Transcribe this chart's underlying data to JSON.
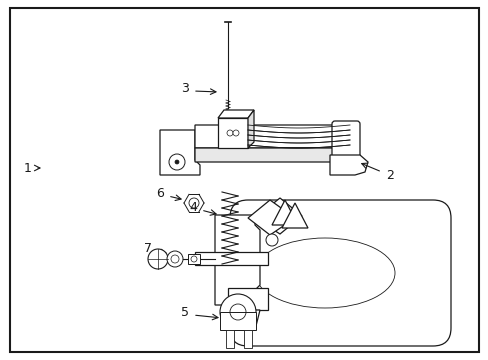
{
  "background_color": "#ffffff",
  "border_color": "#1a1a1a",
  "line_color": "#1a1a1a",
  "label_color": "#000000",
  "figsize": [
    4.89,
    3.6
  ],
  "dpi": 100,
  "lw_main": 0.9,
  "lw_thin": 0.6,
  "lw_thick": 1.2
}
